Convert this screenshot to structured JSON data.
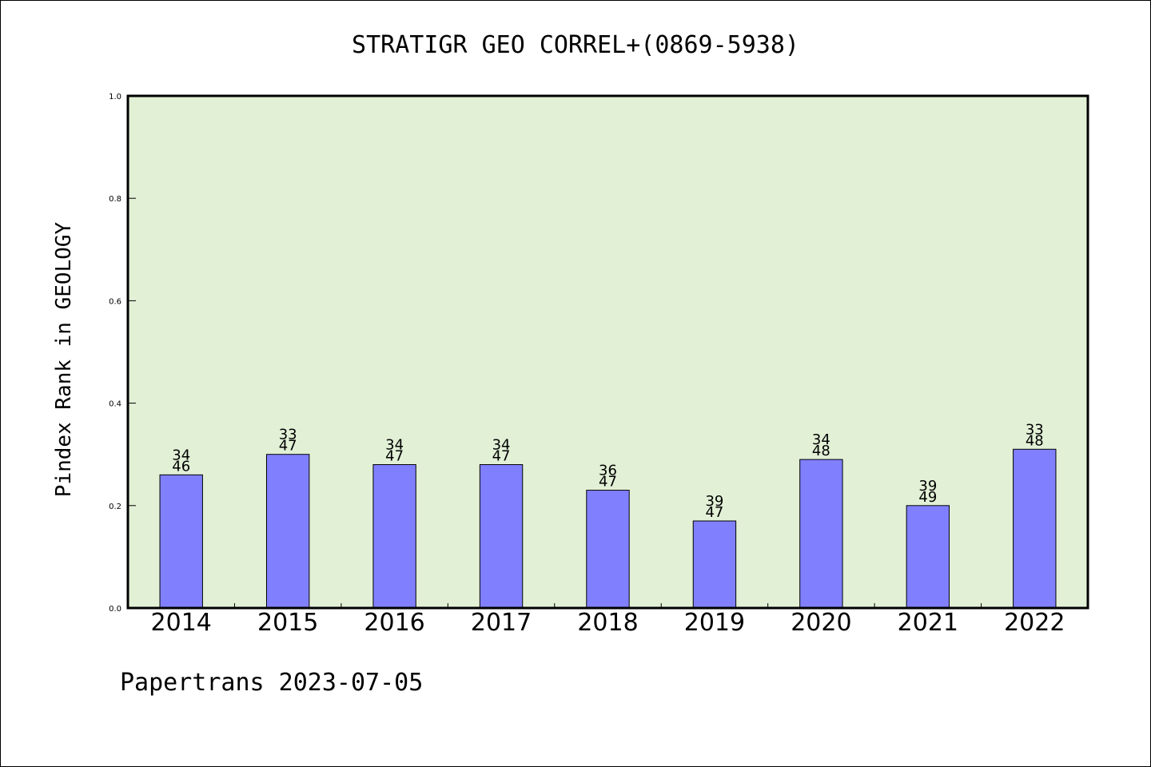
{
  "chart_data": {
    "type": "bar",
    "title": "STRATIGR GEO CORREL+(0869-5938)",
    "ylabel": "Pindex Rank in GEOLOGY",
    "xlabel": "",
    "ylim": [
      0,
      1.0
    ],
    "yticks": [
      "0.0",
      "0.2",
      "0.4",
      "0.6",
      "0.8",
      "1.0"
    ],
    "categories": [
      "2014",
      "2015",
      "2016",
      "2017",
      "2018",
      "2019",
      "2020",
      "2021",
      "2022"
    ],
    "values": [
      0.26,
      0.3,
      0.28,
      0.28,
      0.23,
      0.17,
      0.29,
      0.2,
      0.31
    ],
    "labels_top": [
      "34",
      "33",
      "34",
      "34",
      "36",
      "39",
      "34",
      "39",
      "33"
    ],
    "labels_bottom": [
      "46",
      "47",
      "47",
      "47",
      "47",
      "47",
      "48",
      "49",
      "48"
    ],
    "bar_color": "#8080ff",
    "plot_background": "#e2f0d6",
    "grid": false
  },
  "footer": "Papertrans 2023-07-05"
}
